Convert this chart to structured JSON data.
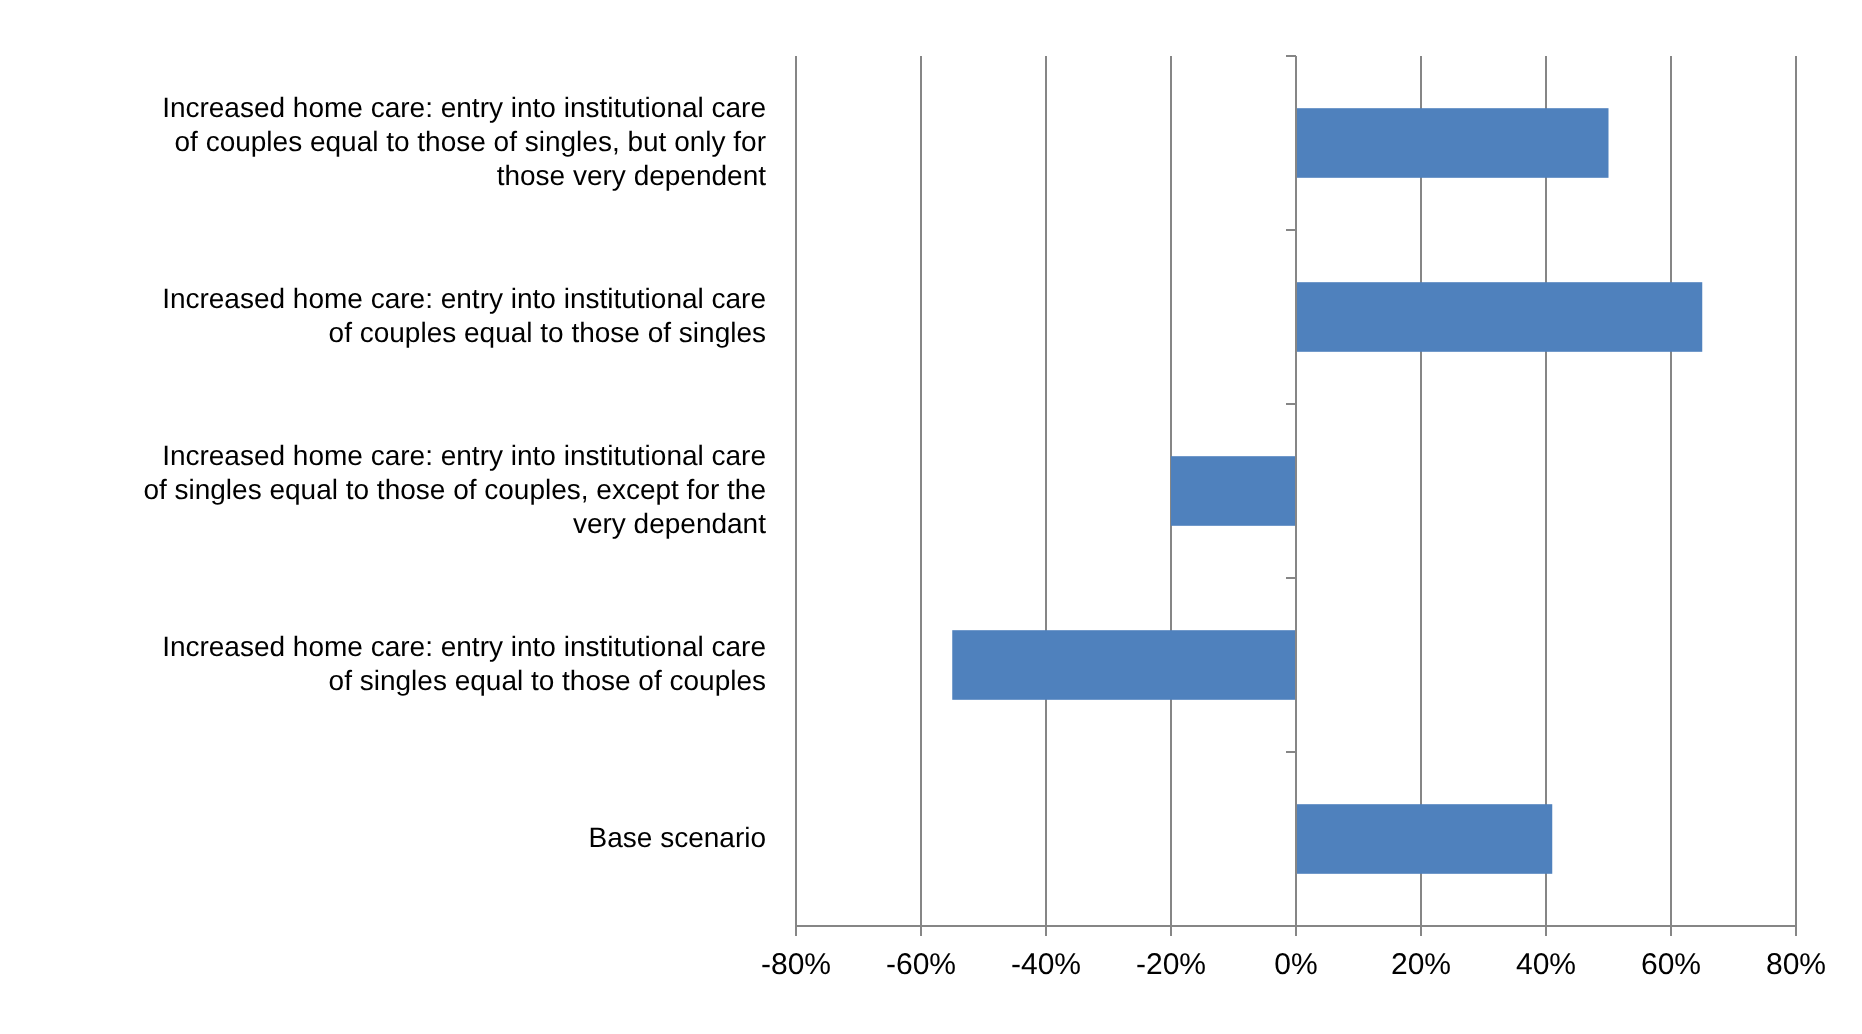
{
  "chart_data": {
    "type": "bar",
    "orientation": "horizontal",
    "categories": [
      "Increased home care: entry into institutional care of couples equal to those of singles, but only for those very dependent",
      "Increased home care: entry into institutional care of couples equal to those of singles",
      "Increased home care: entry into institutional care of singles equal to those of couples, except for the very dependant",
      "Increased home care: entry into institutional care of singles equal to those of couples",
      "Base scenario"
    ],
    "values": [
      50,
      65,
      -20,
      -55,
      41
    ],
    "color": "#4f81bd",
    "xlim": [
      -80,
      80
    ],
    "xticks": [
      {
        "value": -80,
        "label": "-80%"
      },
      {
        "value": -60,
        "label": "-60%"
      },
      {
        "value": -40,
        "label": "-40%"
      },
      {
        "value": -20,
        "label": "-20%"
      },
      {
        "value": 0,
        "label": "0%"
      },
      {
        "value": 20,
        "label": "20%"
      },
      {
        "value": 40,
        "label": "40%"
      },
      {
        "value": 60,
        "label": "60%"
      },
      {
        "value": 80,
        "label": "80%"
      }
    ],
    "grid": "x"
  }
}
